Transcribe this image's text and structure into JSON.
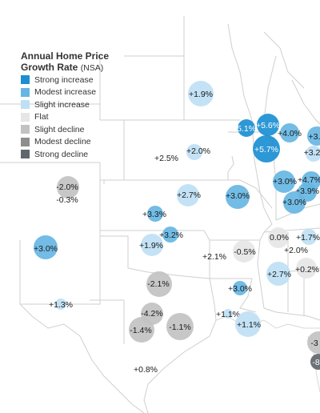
{
  "legend": {
    "title": "Annual Home Price",
    "title_line2": "Growth Rate",
    "title_suffix": "(NSA)",
    "items": [
      {
        "label": "Strong increase",
        "color": "#1b8fd2"
      },
      {
        "label": "Modest increase",
        "color": "#66b6e3"
      },
      {
        "label": "Slight increase",
        "color": "#bfe0f4"
      },
      {
        "label": "Flat",
        "color": "#e6e6e6"
      },
      {
        "label": "Slight decline",
        "color": "#c2c2c2"
      },
      {
        "label": "Modest decline",
        "color": "#8e8e8e"
      },
      {
        "label": "Strong decline",
        "color": "#5f666d"
      }
    ]
  },
  "markers": [
    {
      "label": "+1.9%",
      "category": "Slight increase"
    },
    {
      "label": "+5.1%",
      "category": "Strong increase"
    },
    {
      "label": "+5.6%",
      "category": "Strong increase"
    },
    {
      "label": "+4.0%",
      "category": "Modest increase"
    },
    {
      "label": "+3.",
      "category": "Modest increase"
    },
    {
      "label": "+5.7%",
      "category": "Strong increase"
    },
    {
      "label": "+3.2",
      "category": "Slight increase"
    },
    {
      "label": "+2.0%",
      "category": "Slight increase"
    },
    {
      "label": "+2.5%",
      "category": "Slight increase"
    },
    {
      "label": "+3.0%",
      "category": "Modest increase"
    },
    {
      "label": "+4.7%",
      "category": "Modest increase"
    },
    {
      "label": "+3.9%",
      "category": "Modest increase"
    },
    {
      "label": "+3.0%",
      "category": "Modest increase"
    },
    {
      "label": "-2.0%",
      "category": "Slight decline"
    },
    {
      "label": "-0.3%",
      "category": "Flat"
    },
    {
      "label": "+2.7%",
      "category": "Slight increase"
    },
    {
      "label": "+3.0%",
      "category": "Modest increase"
    },
    {
      "label": "+3.3%",
      "category": "Modest increase"
    },
    {
      "label": "+3.2%",
      "category": "Modest increase"
    },
    {
      "label": "+1.9%",
      "category": "Slight increase"
    },
    {
      "label": "+3.0%",
      "category": "Modest increase"
    },
    {
      "label": "+2.1%",
      "category": "Slight increase"
    },
    {
      "label": "-0.5%",
      "category": "Flat"
    },
    {
      "label": "0.0%",
      "category": "Flat"
    },
    {
      "label": "+1.7%",
      "category": "Slight increase"
    },
    {
      "label": "+2.0%",
      "category": "Slight increase"
    },
    {
      "label": "+2.7%",
      "category": "Slight increase"
    },
    {
      "label": "+0.2%",
      "category": "Flat"
    },
    {
      "label": "-2.1%",
      "category": "Slight decline"
    },
    {
      "label": "+3.0%",
      "category": "Modest increase"
    },
    {
      "label": "+1.3%",
      "category": "Slight increase"
    },
    {
      "label": "-4.2%",
      "category": "Slight decline"
    },
    {
      "label": "-1.4%",
      "category": "Slight decline"
    },
    {
      "label": "-1.1%",
      "category": "Slight decline"
    },
    {
      "label": "+1.1%",
      "category": "Slight increase"
    },
    {
      "label": "+1.1%",
      "category": "Slight increase"
    },
    {
      "label": "+0.8%",
      "category": "Slight increase"
    },
    {
      "label": "-3",
      "category": "Slight decline"
    },
    {
      "label": "-8",
      "category": "Strong decline"
    }
  ]
}
